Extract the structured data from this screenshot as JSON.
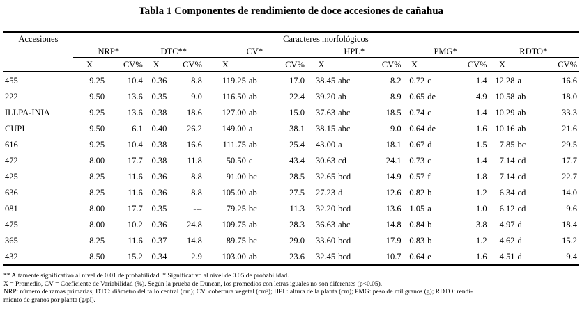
{
  "title": "Tabla 1 Componentes de rendimiento de doce accesiones de cañahua",
  "header": {
    "accesiones": "Accesiones",
    "caracteres": "Caracteres morfológicos",
    "groups": [
      "NRP*",
      "DTC**",
      "CV*",
      "HPL*",
      "PMG*",
      "RDTO*"
    ],
    "xbar": "X",
    "cv": "CV%"
  },
  "rows": [
    {
      "acc": "455",
      "nrp_x": "9.25",
      "nrp_cv": "10.4",
      "dtc_x": "0.36",
      "dtc_cv": "8.8",
      "cv_x": "119.25",
      "cv_l": "ab",
      "cv_cv": "17.0",
      "hpl_x": "38.45",
      "hpl_l": "abc",
      "hpl_cv": "8.2",
      "pmg_x": "0.72",
      "pmg_l": "c",
      "pmg_cv": "1.4",
      "rd_x": "12.28",
      "rd_l": "a",
      "rd_cv": "16.6"
    },
    {
      "acc": "222",
      "nrp_x": "9.50",
      "nrp_cv": "13.6",
      "dtc_x": "0.35",
      "dtc_cv": "9.0",
      "cv_x": "116.50",
      "cv_l": "ab",
      "cv_cv": "22.4",
      "hpl_x": "39.20",
      "hpl_l": "ab",
      "hpl_cv": "8.9",
      "pmg_x": "0.65",
      "pmg_l": "de",
      "pmg_cv": "4.9",
      "rd_x": "10.58",
      "rd_l": "ab",
      "rd_cv": "18.0"
    },
    {
      "acc": "ILLPA-INIA",
      "nrp_x": "9.25",
      "nrp_cv": "13.6",
      "dtc_x": "0.38",
      "dtc_cv": "18.6",
      "cv_x": "127.00",
      "cv_l": "ab",
      "cv_cv": "15.0",
      "hpl_x": "37.63",
      "hpl_l": "abc",
      "hpl_cv": "18.5",
      "pmg_x": "0.74",
      "pmg_l": "c",
      "pmg_cv": "1.4",
      "rd_x": "10.29",
      "rd_l": "ab",
      "rd_cv": "33.3"
    },
    {
      "acc": "CUPI",
      "nrp_x": "9.50",
      "nrp_cv": "6.1",
      "dtc_x": "0.40",
      "dtc_cv": "26.2",
      "cv_x": "149.00",
      "cv_l": "a",
      "cv_cv": "38.1",
      "hpl_x": "38.15",
      "hpl_l": "abc",
      "hpl_cv": "9.0",
      "pmg_x": "0.64",
      "pmg_l": "de",
      "pmg_cv": "1.6",
      "rd_x": "10.16",
      "rd_l": "ab",
      "rd_cv": "21.6"
    },
    {
      "acc": "616",
      "nrp_x": "9.25",
      "nrp_cv": "10.4",
      "dtc_x": "0.38",
      "dtc_cv": "16.6",
      "cv_x": "111.75",
      "cv_l": "ab",
      "cv_cv": "25.4",
      "hpl_x": "43.00",
      "hpl_l": "a",
      "hpl_cv": "18.1",
      "pmg_x": "0.67",
      "pmg_l": "d",
      "pmg_cv": "1.5",
      "rd_x": "7.85",
      "rd_l": "bc",
      "rd_cv": "29.5"
    },
    {
      "acc": "472",
      "nrp_x": "8.00",
      "nrp_cv": "17.7",
      "dtc_x": "0.38",
      "dtc_cv": "11.8",
      "cv_x": "50.50",
      "cv_l": "c",
      "cv_cv": "43.4",
      "hpl_x": "30.63",
      "hpl_l": "cd",
      "hpl_cv": "24.1",
      "pmg_x": "0.73",
      "pmg_l": "c",
      "pmg_cv": "1.4",
      "rd_x": "7.14",
      "rd_l": "cd",
      "rd_cv": "17.7"
    },
    {
      "acc": "425",
      "nrp_x": "8.25",
      "nrp_cv": "11.6",
      "dtc_x": "0.36",
      "dtc_cv": "8.8",
      "cv_x": "91.00",
      "cv_l": "bc",
      "cv_cv": "28.5",
      "hpl_x": "32.65",
      "hpl_l": "bcd",
      "hpl_cv": "14.9",
      "pmg_x": "0.57",
      "pmg_l": "f",
      "pmg_cv": "1.8",
      "rd_x": "7.14",
      "rd_l": "cd",
      "rd_cv": "22.7"
    },
    {
      "acc": "636",
      "nrp_x": "8.25",
      "nrp_cv": "11.6",
      "dtc_x": "0.36",
      "dtc_cv": "8.8",
      "cv_x": "105.00",
      "cv_l": "ab",
      "cv_cv": "27.5",
      "hpl_x": "27.23",
      "hpl_l": "d",
      "hpl_cv": "12.6",
      "pmg_x": "0.82",
      "pmg_l": "b",
      "pmg_cv": "1.2",
      "rd_x": "6.34",
      "rd_l": "cd",
      "rd_cv": "14.0"
    },
    {
      "acc": "081",
      "nrp_x": "8.00",
      "nrp_cv": "17.7",
      "dtc_x": "0.35",
      "dtc_cv": "---",
      "cv_x": "79.25",
      "cv_l": "bc",
      "cv_cv": "11.3",
      "hpl_x": "32.20",
      "hpl_l": "bcd",
      "hpl_cv": "13.6",
      "pmg_x": "1.05",
      "pmg_l": "a",
      "pmg_cv": "1.0",
      "rd_x": "6.12",
      "rd_l": "cd",
      "rd_cv": "9.6"
    },
    {
      "acc": "475",
      "nrp_x": "8.00",
      "nrp_cv": "10.2",
      "dtc_x": "0.36",
      "dtc_cv": "24.8",
      "cv_x": "109.75",
      "cv_l": "ab",
      "cv_cv": "28.3",
      "hpl_x": "36.63",
      "hpl_l": "abc",
      "hpl_cv": "14.8",
      "pmg_x": "0.84",
      "pmg_l": "b",
      "pmg_cv": "3.8",
      "rd_x": "4.97",
      "rd_l": "d",
      "rd_cv": "18.4"
    },
    {
      "acc": "365",
      "nrp_x": "8.25",
      "nrp_cv": "11.6",
      "dtc_x": "0.37",
      "dtc_cv": "14.8",
      "cv_x": "89.75",
      "cv_l": "bc",
      "cv_cv": "29.0",
      "hpl_x": "33.60",
      "hpl_l": "bcd",
      "hpl_cv": "17.9",
      "pmg_x": "0.83",
      "pmg_l": "b",
      "pmg_cv": "1.2",
      "rd_x": "4.62",
      "rd_l": "d",
      "rd_cv": "15.2"
    },
    {
      "acc": "432",
      "nrp_x": "8.50",
      "nrp_cv": "15.2",
      "dtc_x": "0.34",
      "dtc_cv": "2.9",
      "cv_x": "103.00",
      "cv_l": "ab",
      "cv_cv": "23.6",
      "hpl_x": "32.45",
      "hpl_l": "bcd",
      "hpl_cv": "10.7",
      "pmg_x": "0.64",
      "pmg_l": "e",
      "pmg_cv": "1.6",
      "rd_x": "4.51",
      "rd_l": "d",
      "rd_cv": "9.4"
    }
  ],
  "notes": {
    "line1": "** Altamente significativo al nivel de 0.01 de probabilidad. * Significativo al nivel de 0.05 de probabilidad.",
    "line2_sym": "X",
    "line2": " = Promedio, CV = Coeficiente de Variabilidad (%). Según la prueba de Duncan, los promedios con letras iguales no son diferentes (p<0.05).",
    "line3": "NRP: número de ramas primarias; DTC: diámetro del tallo central (cm); CV: cobertura vegetal (cm²); HPL: altura de la planta (cm); PMG: peso de mil granos (g); RDTO: rendi-",
    "line4": "miento de granos por planta (g/pl)."
  }
}
